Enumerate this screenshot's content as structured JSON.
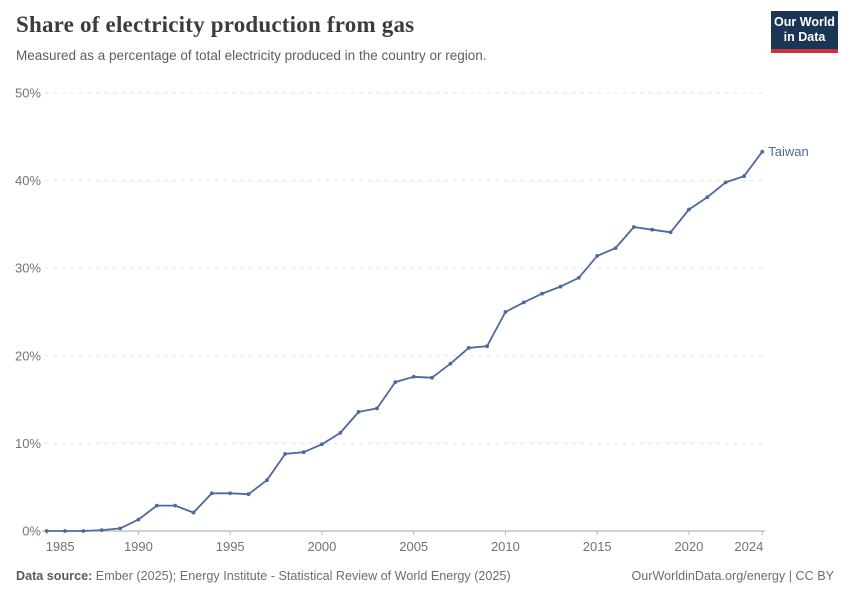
{
  "header": {
    "title": "Share of electricity production from gas",
    "subtitle": "Measured as a percentage of total electricity produced in the country or region."
  },
  "logo": {
    "line1": "Our World",
    "line2": "in Data",
    "bg_color": "#1B3554",
    "accent_color": "#CE313B",
    "text_color": "#FFFFFF"
  },
  "chart_data": {
    "type": "line",
    "title": "Share of electricity production from gas",
    "xlabel": "",
    "ylabel": "",
    "xlim": [
      1985,
      2024
    ],
    "ylim": [
      0,
      50
    ],
    "x_ticks": [
      1985,
      1990,
      1995,
      2000,
      2005,
      2010,
      2015,
      2020,
      2024
    ],
    "y_ticks": [
      0,
      10,
      20,
      30,
      40,
      50
    ],
    "y_tick_suffix": "%",
    "grid": "horizontal-dashed",
    "legend": "inline-end-label",
    "x": [
      1985,
      1986,
      1987,
      1988,
      1989,
      1990,
      1991,
      1992,
      1993,
      1994,
      1995,
      1996,
      1997,
      1998,
      1999,
      2000,
      2001,
      2002,
      2003,
      2004,
      2005,
      2006,
      2007,
      2008,
      2009,
      2010,
      2011,
      2012,
      2013,
      2014,
      2015,
      2016,
      2017,
      2018,
      2019,
      2020,
      2021,
      2022,
      2023,
      2024
    ],
    "series": [
      {
        "name": "Taiwan",
        "color": "#4C6A9C",
        "values": [
          0,
          0,
          0,
          0.1,
          0.3,
          1.3,
          2.9,
          2.9,
          2.1,
          4.3,
          4.3,
          4.2,
          5.8,
          8.8,
          9.0,
          9.9,
          11.2,
          13.6,
          14.0,
          17.0,
          17.6,
          17.5,
          19.1,
          20.9,
          21.1,
          25.0,
          26.1,
          27.1,
          27.9,
          28.9,
          31.4,
          32.3,
          34.7,
          34.4,
          34.1,
          36.7,
          38.1,
          39.8,
          40.5,
          43.3
        ]
      }
    ]
  },
  "footer": {
    "datasource_label": "Data source:",
    "datasource_text": "Ember (2025); Energy Institute - Statistical Review of World Energy (2025)",
    "link_text": "OurWorldinData.org/energy | CC BY"
  },
  "colors": {
    "axis_text": "#737373",
    "gridline": "#E2E2E2",
    "axis_line": "#A5A5A5",
    "tick_mark": "#B8B8B8"
  }
}
